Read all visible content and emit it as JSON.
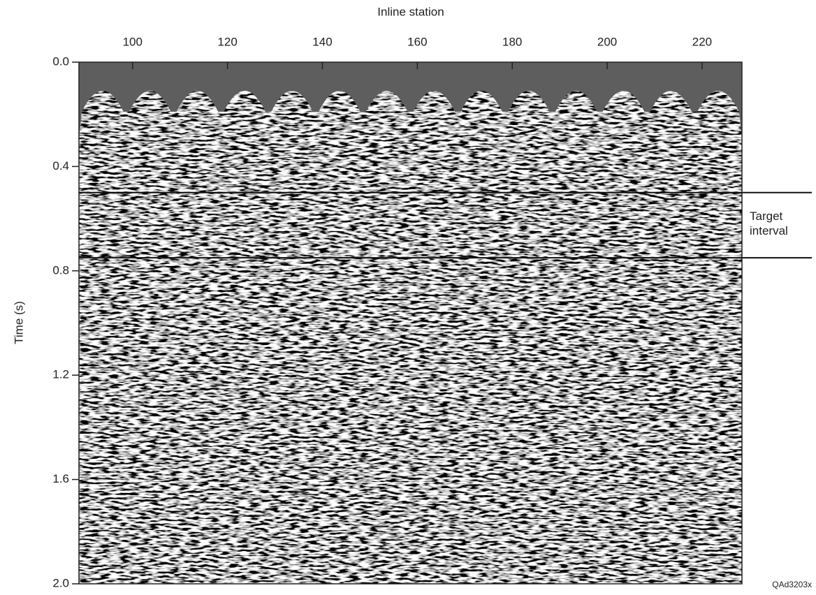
{
  "chart_data": {
    "type": "seismic",
    "xlabel": "Inline station",
    "ylabel": "Time (s)",
    "xlim": [
      88.7,
      228.4
    ],
    "xticks": [
      100,
      120,
      140,
      160,
      180,
      200,
      220
    ],
    "ylim": [
      0,
      2
    ],
    "yticks": [
      {
        "value": 0,
        "label": "0.0"
      },
      0.4,
      0.8,
      1.2,
      1.6,
      {
        "value": 2,
        "label": "2.0"
      }
    ],
    "annotation": {
      "text": "Target interval",
      "y": [
        0.5,
        0.75
      ]
    },
    "figure_id": "QAd3203x"
  }
}
